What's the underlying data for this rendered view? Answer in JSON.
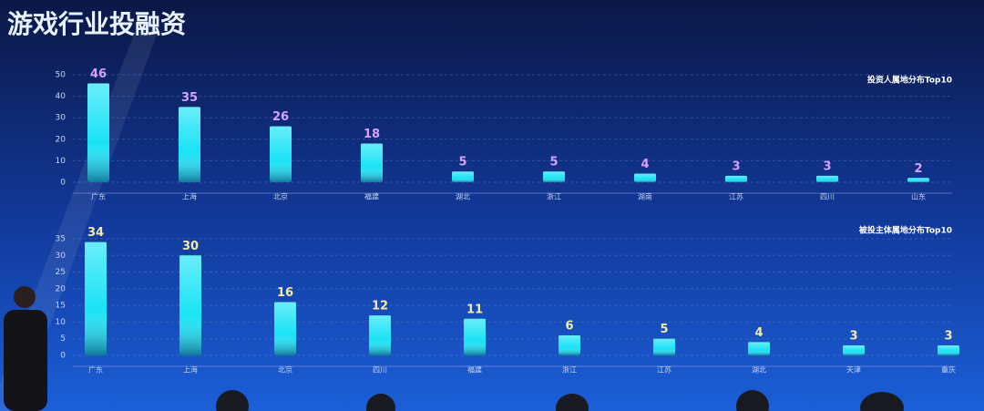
{
  "title": "游戏行业投融资",
  "chart_data": [
    {
      "type": "bar",
      "title": "投资人属地分布Top10",
      "categories": [
        "广东",
        "上海",
        "北京",
        "福建",
        "湖北",
        "浙江",
        "湖南",
        "江苏",
        "四川",
        "山东"
      ],
      "values": [
        46,
        35,
        26,
        18,
        5,
        5,
        4,
        3,
        3,
        2
      ],
      "color": "#19e3f5",
      "label_color": "#d7a2ff",
      "ylim": [
        0,
        50
      ],
      "yticks": [
        0,
        10,
        20,
        30,
        40,
        50
      ],
      "grid": true
    },
    {
      "type": "bar",
      "title": "被投主体属地分布Top10",
      "categories": [
        "广东",
        "上海",
        "北京",
        "四川",
        "福建",
        "浙江",
        "江苏",
        "湖北",
        "天津",
        "重庆"
      ],
      "values": [
        34,
        30,
        16,
        12,
        11,
        6,
        5,
        4,
        3,
        3
      ],
      "color": "#19e3f5",
      "label_color": "#f3eaa6",
      "ylim": [
        0,
        35
      ],
      "yticks": [
        0,
        5,
        10,
        15,
        20,
        25,
        30,
        35
      ],
      "grid": true
    }
  ]
}
